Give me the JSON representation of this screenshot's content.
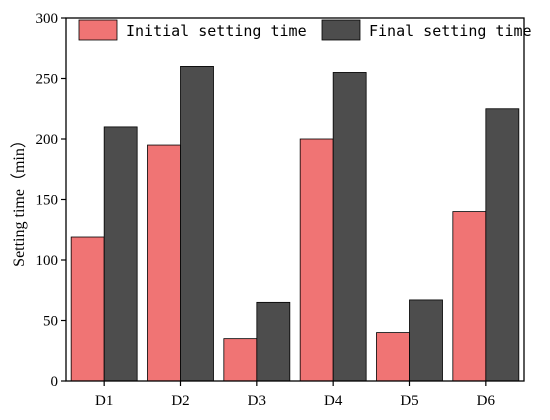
{
  "chart_data": {
    "type": "bar",
    "categories": [
      "D1",
      "D2",
      "D3",
      "D4",
      "D5",
      "D6"
    ],
    "series": [
      {
        "name": "Initial setting time",
        "values": [
          119,
          195,
          35,
          200,
          40,
          140
        ],
        "color": "#F07474"
      },
      {
        "name": "Final setting time",
        "values": [
          210,
          260,
          65,
          255,
          67,
          225
        ],
        "color": "#4D4D4D"
      }
    ],
    "xlabel": "",
    "ylabel": "Setting time（min）",
    "ylim": [
      0,
      300
    ],
    "yticks": [
      0,
      50,
      100,
      150,
      200,
      250,
      300
    ],
    "grid": false,
    "legend_position": "top"
  }
}
